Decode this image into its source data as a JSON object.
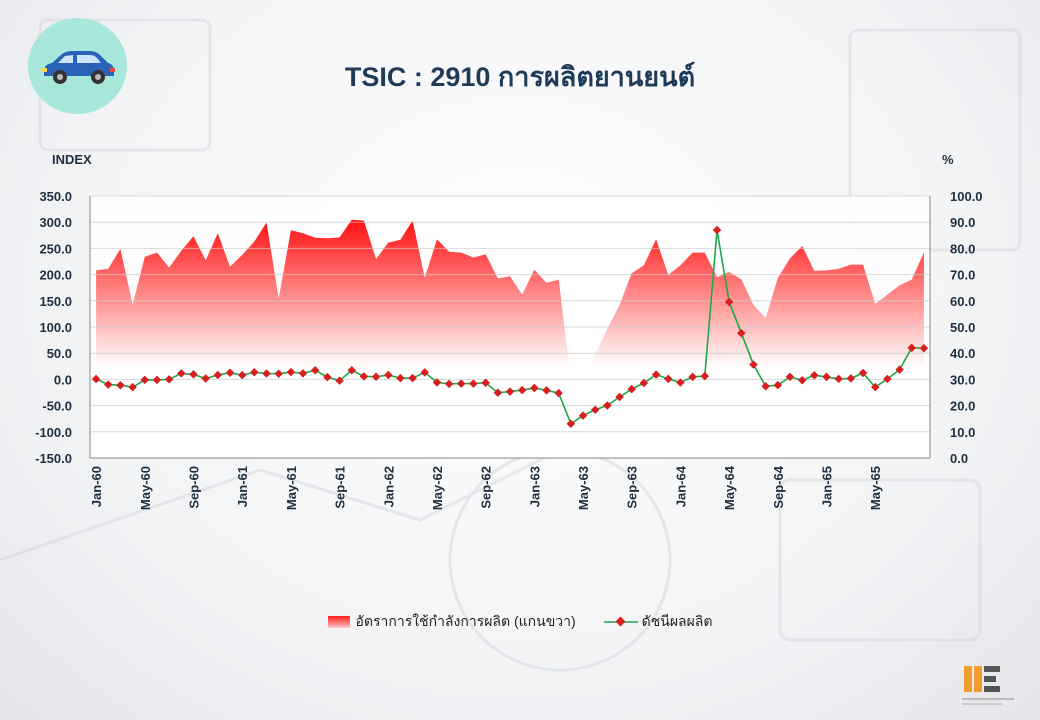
{
  "title": "TSIC : 2910 การผลิตยานยนต์",
  "icon": "car-icon",
  "colors": {
    "area_top": "#ff1010",
    "area_bottom": "#ffffff",
    "line": "#1ea84a",
    "marker": "#d81e1e",
    "title": "#1f3b5a",
    "badge": "#a8e8dc"
  },
  "chart_data": {
    "type": "line",
    "left_axis": {
      "label": "INDEX",
      "ticks": [
        "350.0",
        "300.0",
        "250.0",
        "200.0",
        "150.0",
        "100.0",
        "50.0",
        "0.0",
        "-50.0",
        "-100.0",
        "-150.0"
      ],
      "range": [
        -150,
        350
      ]
    },
    "right_axis": {
      "label": "%",
      "ticks": [
        "100.0",
        "90.0",
        "80.0",
        "70.0",
        "60.0",
        "50.0",
        "40.0",
        "30.0",
        "20.0",
        "10.0",
        "0.0"
      ],
      "range": [
        0,
        100
      ]
    },
    "x_tick_labels": [
      "Jan-60",
      "May-60",
      "Sep-60",
      "Jan-61",
      "May-61",
      "Sep-61",
      "Jan-62",
      "May-62",
      "Sep-62",
      "Jan-63",
      "May-63",
      "Sep-63",
      "Jan-64",
      "May-64",
      "Sep-64",
      "Jan-65",
      "May-65"
    ],
    "x_tick_every": 4,
    "grid": "horizontal",
    "legend_placement": "bottom",
    "series": [
      {
        "name": "อัตราการใช้กำลังการผลิต (แกนขวา)",
        "type": "area",
        "axis": "right",
        "values": [
          71.6,
          72.2,
          79.8,
          58.5,
          76.8,
          78.4,
          72.7,
          79.1,
          84.6,
          75.5,
          85.8,
          73.0,
          77.5,
          82.6,
          89.9,
          60.9,
          86.9,
          85.8,
          84.1,
          83.9,
          84.2,
          90.9,
          90.6,
          75.9,
          82.2,
          83.3,
          90.6,
          68.8,
          83.5,
          78.7,
          78.4,
          76.5,
          77.8,
          68.5,
          69.4,
          62.3,
          71.9,
          66.9,
          68.1,
          29.7,
          28.6,
          39.6,
          49.4,
          58.4,
          70.5,
          73.6,
          83.5,
          69.9,
          73.6,
          78.4,
          78.4,
          69.0,
          71.0,
          68.2,
          58.4,
          53.4,
          68.7,
          76.2,
          80.9,
          71.5,
          71.6,
          72.2,
          73.8,
          73.8,
          58.8,
          62.3,
          65.9,
          68.1,
          78.4
        ]
      },
      {
        "name": "ดัชนีผลผลิต",
        "type": "line",
        "axis": "left",
        "values": [
          0.8,
          -10.0,
          -11.1,
          -14.8,
          -1.0,
          -1.0,
          0.2,
          11.5,
          9.6,
          1.7,
          8.4,
          12.8,
          8.1,
          13.7,
          11.2,
          10.8,
          13.8,
          11.6,
          17.5,
          4.3,
          -2.5,
          17.6,
          5.8,
          5.1,
          8.3,
          2.4,
          2.4,
          13.3,
          -5.7,
          -8.6,
          -8.1,
          -8.1,
          -6.5,
          -25.3,
          -23.3,
          -20.5,
          -16.4,
          -21.0,
          -26.2,
          -84.8,
          -69.0,
          -58.0,
          -49.9,
          -33.6,
          -18.6,
          -6.9,
          9.2,
          1.0,
          -6.0,
          4.8,
          6.3,
          285.0,
          148.0,
          88.3,
          28.3,
          -13.2,
          -10.9,
          4.7,
          -1.7,
          8.1,
          4.8,
          1.1,
          1.9,
          12.2,
          -14.6,
          0.7,
          18.7,
          60.3,
          59.4
        ]
      }
    ]
  },
  "legend": {
    "area_label": "อัตราการใช้กำลังการผลิต (แกนขวา)",
    "line_label": "ดัชนีผลผลิต"
  }
}
